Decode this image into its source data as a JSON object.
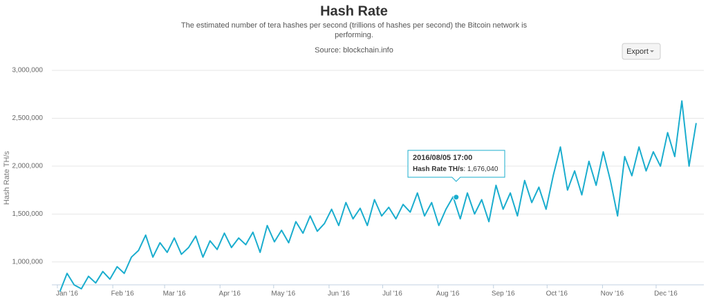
{
  "chart_data": {
    "type": "line",
    "title": "Hash Rate",
    "subtitle": [
      "The estimated number of tera hashes per second (trillions of hashes per second) the Bitcoin network is",
      "performing."
    ],
    "source": "Source: blockchain.info",
    "export_button": "Export",
    "y_label": "Hash Rate TH/s",
    "grid": true,
    "ylim": [
      750000,
      3000000
    ],
    "yticks": [
      {
        "value": 1000000,
        "label": "1,000,000"
      },
      {
        "value": 1500000,
        "label": "1,500,000"
      },
      {
        "value": 2000000,
        "label": "2,000,000"
      },
      {
        "value": 2500000,
        "label": "2,500,000"
      },
      {
        "value": 3000000,
        "label": "3,000,000"
      }
    ],
    "xticks": [
      {
        "value": "2016/01/01",
        "label": "Jan '16"
      },
      {
        "value": "2016/02/01",
        "label": "Feb '16"
      },
      {
        "value": "2016/03/01",
        "label": "Mar '16"
      },
      {
        "value": "2016/04/01",
        "label": "Apr '16"
      },
      {
        "value": "2016/05/01",
        "label": "May '16"
      },
      {
        "value": "2016/06/01",
        "label": "Jun '16"
      },
      {
        "value": "2016/07/01",
        "label": "Jul '16"
      },
      {
        "value": "2016/08/01",
        "label": "Aug '16"
      },
      {
        "value": "2016/09/01",
        "label": "Sep '16"
      },
      {
        "value": "2016/10/01",
        "label": "Oct '16"
      },
      {
        "value": "2016/11/01",
        "label": "Nov '16"
      },
      {
        "value": "2016/12/01",
        "label": "Dec '16"
      }
    ],
    "x": [
      "2015/12/28",
      "2016/01/01",
      "2016/01/05",
      "2016/01/09",
      "2016/01/13",
      "2016/01/17",
      "2016/01/21",
      "2016/01/25",
      "2016/01/29",
      "2016/02/02",
      "2016/02/06",
      "2016/02/10",
      "2016/02/14",
      "2016/02/18",
      "2016/02/22",
      "2016/02/26",
      "2016/03/01",
      "2016/03/05",
      "2016/03/09",
      "2016/03/13",
      "2016/03/17",
      "2016/03/21",
      "2016/03/25",
      "2016/03/29",
      "2016/04/02",
      "2016/04/06",
      "2016/04/10",
      "2016/04/14",
      "2016/04/18",
      "2016/04/22",
      "2016/04/26",
      "2016/04/30",
      "2016/05/04",
      "2016/05/08",
      "2016/05/12",
      "2016/05/16",
      "2016/05/20",
      "2016/05/24",
      "2016/05/28",
      "2016/06/01",
      "2016/06/05",
      "2016/06/09",
      "2016/06/13",
      "2016/06/17",
      "2016/06/21",
      "2016/06/25",
      "2016/06/29",
      "2016/07/03",
      "2016/07/07",
      "2016/07/11",
      "2016/07/15",
      "2016/07/19",
      "2016/07/23",
      "2016/07/27",
      "2016/07/31",
      "2016/08/04",
      "2016/08/08",
      "2016/08/12",
      "2016/08/16",
      "2016/08/20",
      "2016/08/24",
      "2016/08/28",
      "2016/09/01",
      "2016/09/05",
      "2016/09/09",
      "2016/09/13",
      "2016/09/17",
      "2016/09/21",
      "2016/09/25",
      "2016/09/29",
      "2016/10/03",
      "2016/10/07",
      "2016/10/11",
      "2016/10/15",
      "2016/10/19",
      "2016/10/23",
      "2016/10/27",
      "2016/10/31",
      "2016/11/04",
      "2016/11/08",
      "2016/11/12",
      "2016/11/16",
      "2016/11/20",
      "2016/11/24",
      "2016/11/28",
      "2016/12/02",
      "2016/12/06",
      "2016/12/10",
      "2016/12/14",
      "2016/12/18"
    ],
    "series": [
      {
        "name": "Hash Rate TH/s",
        "color": "#1aadce",
        "values": [
          690000,
          880000,
          760000,
          720000,
          850000,
          780000,
          900000,
          820000,
          950000,
          880000,
          1050000,
          1120000,
          1280000,
          1050000,
          1200000,
          1100000,
          1250000,
          1080000,
          1150000,
          1270000,
          1050000,
          1220000,
          1130000,
          1300000,
          1150000,
          1250000,
          1180000,
          1310000,
          1100000,
          1380000,
          1210000,
          1330000,
          1200000,
          1420000,
          1300000,
          1480000,
          1320000,
          1400000,
          1550000,
          1380000,
          1620000,
          1450000,
          1560000,
          1380000,
          1650000,
          1480000,
          1570000,
          1450000,
          1600000,
          1520000,
          1720000,
          1480000,
          1620000,
          1380000,
          1550000,
          1680000,
          1450000,
          1720000,
          1500000,
          1650000,
          1420000,
          1800000,
          1550000,
          1720000,
          1480000,
          1850000,
          1620000,
          1780000,
          1550000,
          1900000,
          2200000,
          1750000,
          1950000,
          1700000,
          2050000,
          1800000,
          2150000,
          1850000,
          1480000,
          2100000,
          1900000,
          2200000,
          1950000,
          2150000,
          2000000,
          2350000,
          2100000,
          2680000,
          2000000,
          2450000
        ]
      }
    ],
    "tooltip": {
      "x": "2016/08/05 17:00",
      "label": "Hash Rate TH/s",
      "value": 1676040,
      "value_label": "1,676,040"
    }
  }
}
